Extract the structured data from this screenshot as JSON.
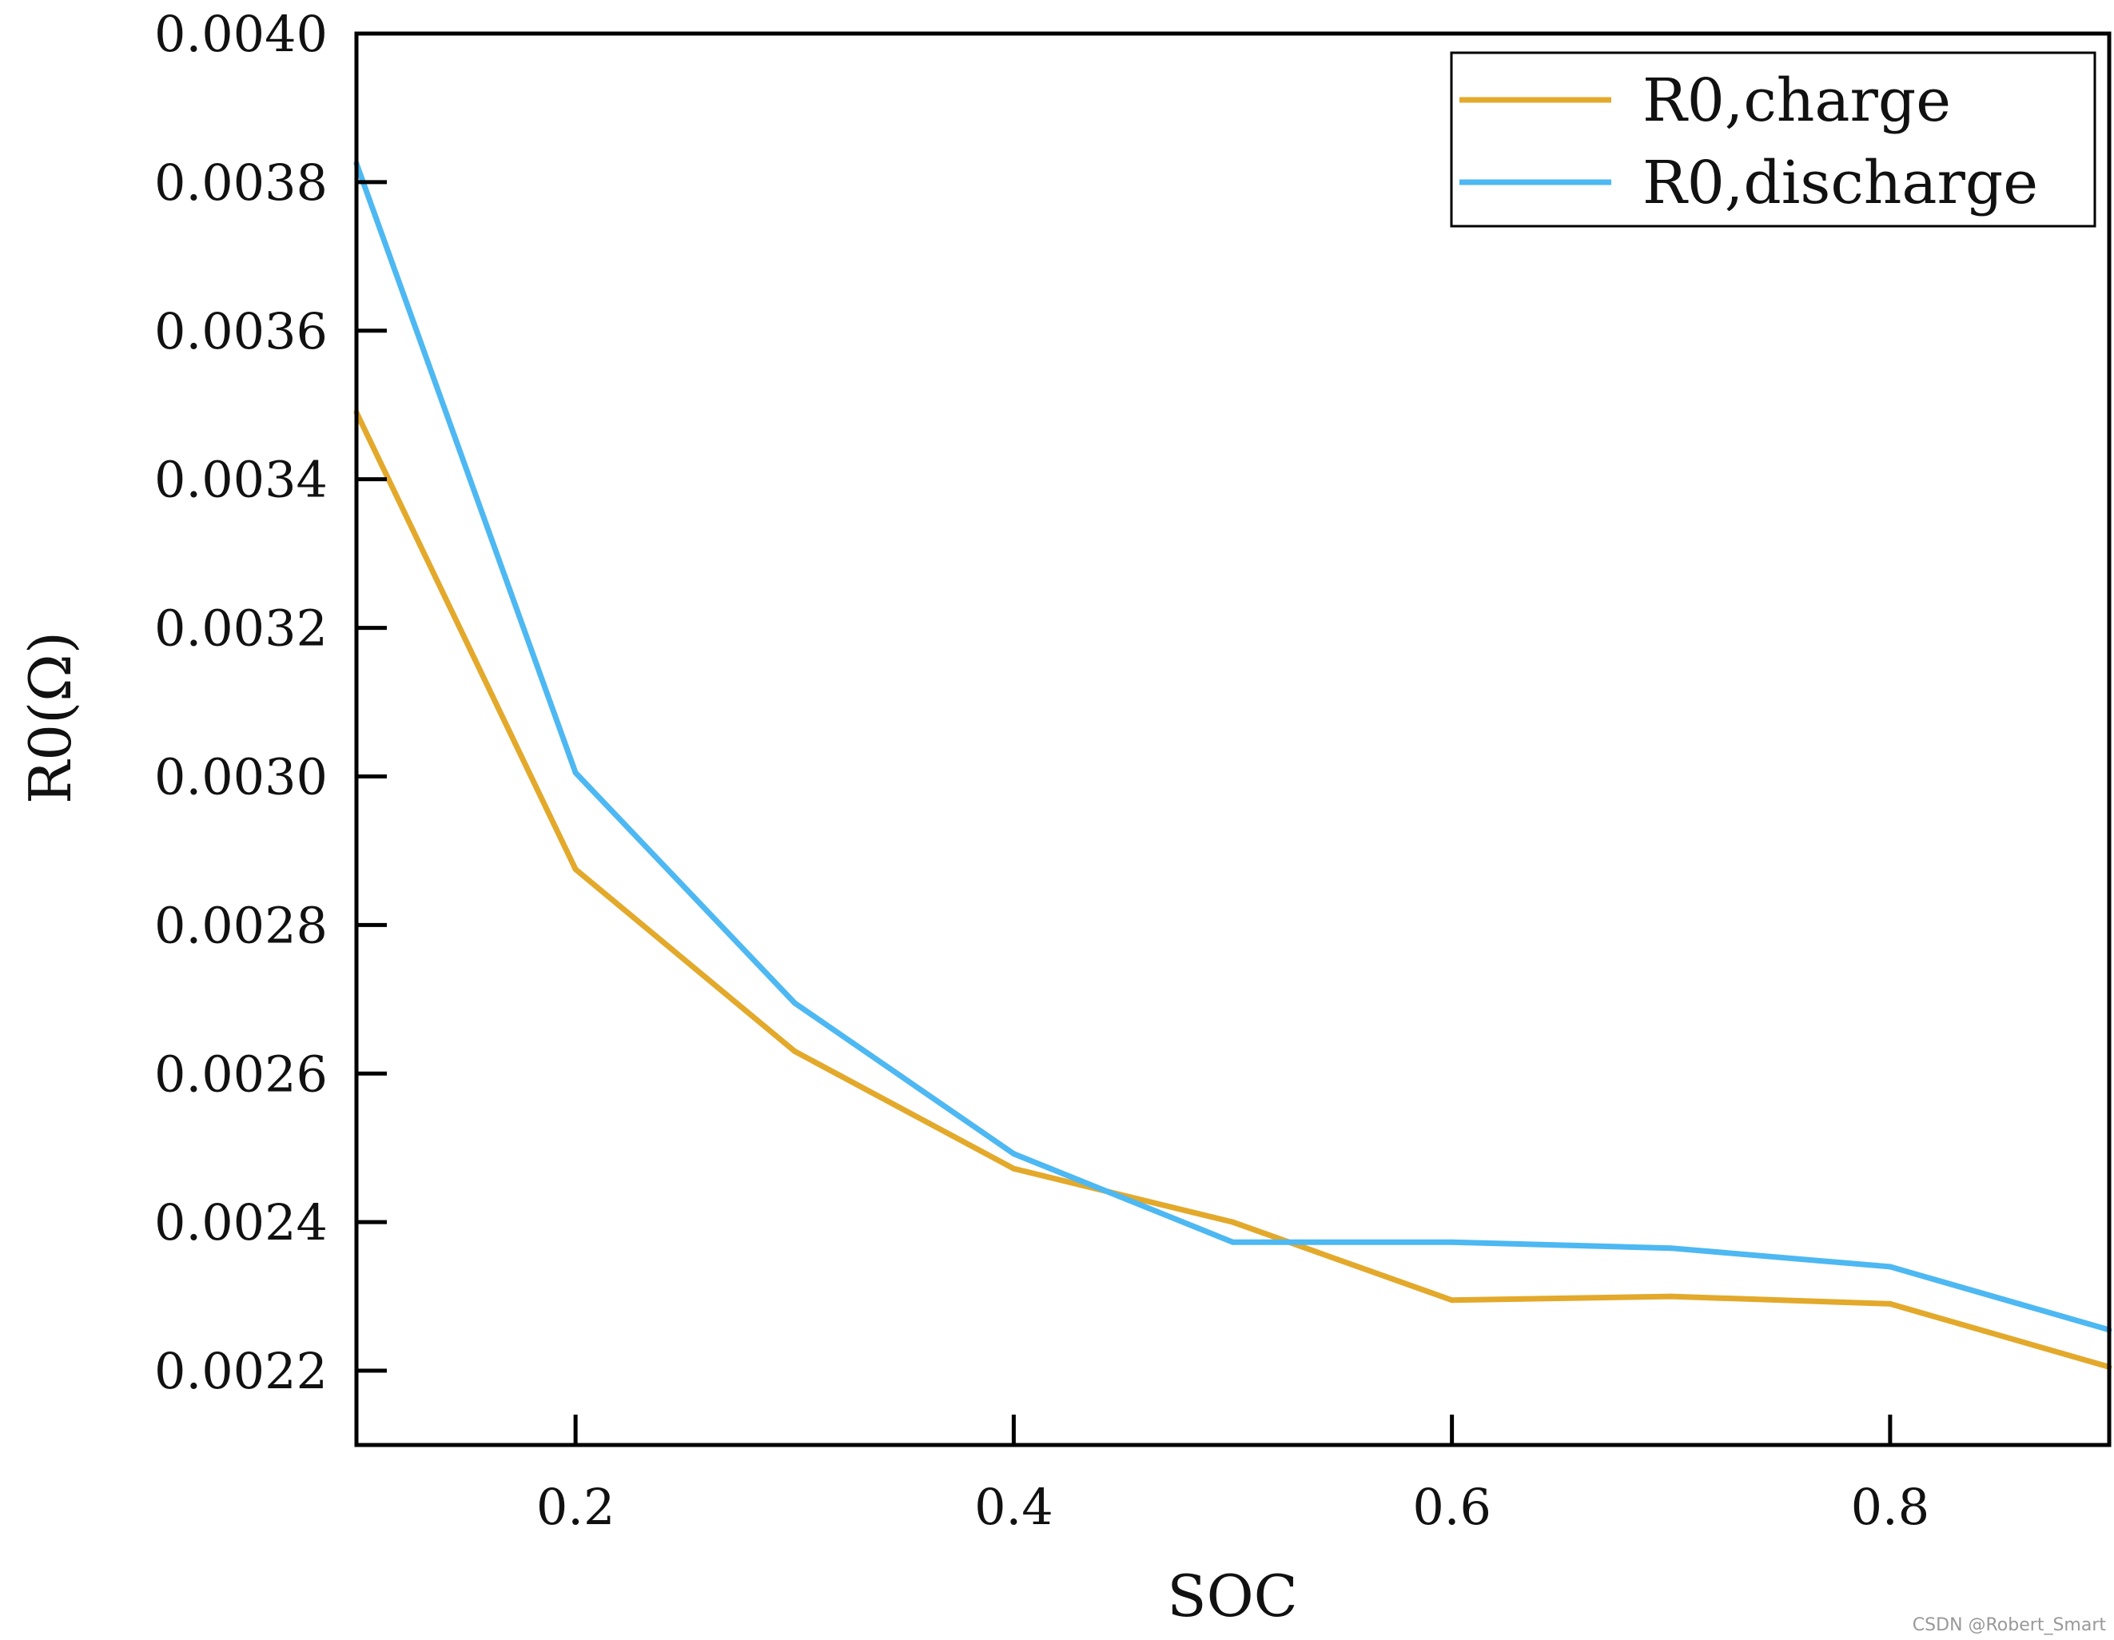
{
  "chart_data": {
    "type": "line",
    "title": "",
    "xlabel": "SOC",
    "ylabel": "R0(Ω)",
    "xlim": [
      0.1,
      0.9
    ],
    "ylim": [
      0.0021,
      0.004
    ],
    "x": [
      0.1,
      0.2,
      0.3,
      0.4,
      0.5,
      0.6,
      0.7,
      0.8,
      0.9
    ],
    "xticks": [
      0.2,
      0.4,
      0.6,
      0.8
    ],
    "xtick_labels": [
      "0.2",
      "0.4",
      "0.6",
      "0.8"
    ],
    "yticks": [
      0.0022,
      0.0024,
      0.0026,
      0.0028,
      0.003,
      0.0032,
      0.0034,
      0.0036,
      0.0038,
      0.004
    ],
    "ytick_labels": [
      "0.0022",
      "0.0024",
      "0.0026",
      "0.0028",
      "0.0030",
      "0.0032",
      "0.0034",
      "0.0036",
      "0.0038",
      "0.0040"
    ],
    "grid": false,
    "legend_position": "top-right",
    "series": [
      {
        "name": "R0,charge",
        "color": "#E3A92B",
        "values": [
          0.00349,
          0.002875,
          0.00263,
          0.002472,
          0.0024,
          0.002295,
          0.0023,
          0.00229,
          0.002205
        ]
      },
      {
        "name": "R0,discharge",
        "color": "#4DB8F2",
        "values": [
          0.003825,
          0.003005,
          0.002695,
          0.002492,
          0.002373,
          0.002373,
          0.002365,
          0.00234,
          0.002255
        ]
      }
    ]
  },
  "watermark": "CSDN @Robert_Smart"
}
